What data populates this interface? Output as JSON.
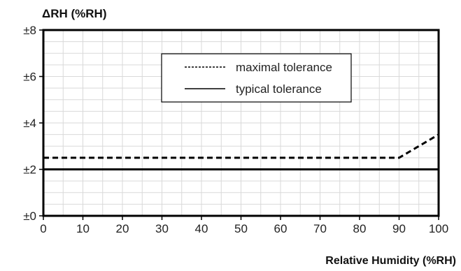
{
  "chart_data": {
    "type": "line",
    "ylabel": "ΔRH (%RH)",
    "xlabel": "Relative Humidity (%RH)",
    "xlim": [
      0,
      100
    ],
    "ylim": [
      0,
      8
    ],
    "xticks": [
      "0",
      "10",
      "20",
      "30",
      "40",
      "50",
      "60",
      "70",
      "80",
      "90",
      "100"
    ],
    "yticks": [
      "±0",
      "±2",
      "±4",
      "±6",
      "±8"
    ],
    "grid": true,
    "legend_position": "top-right",
    "series": [
      {
        "name": "maximal tolerance",
        "style": "dashed",
        "x": [
          0,
          90,
          100
        ],
        "y": [
          2.5,
          2.5,
          3.5
        ]
      },
      {
        "name": "typical tolerance",
        "style": "solid",
        "x": [
          0,
          100
        ],
        "y": [
          2,
          2
        ]
      }
    ]
  }
}
